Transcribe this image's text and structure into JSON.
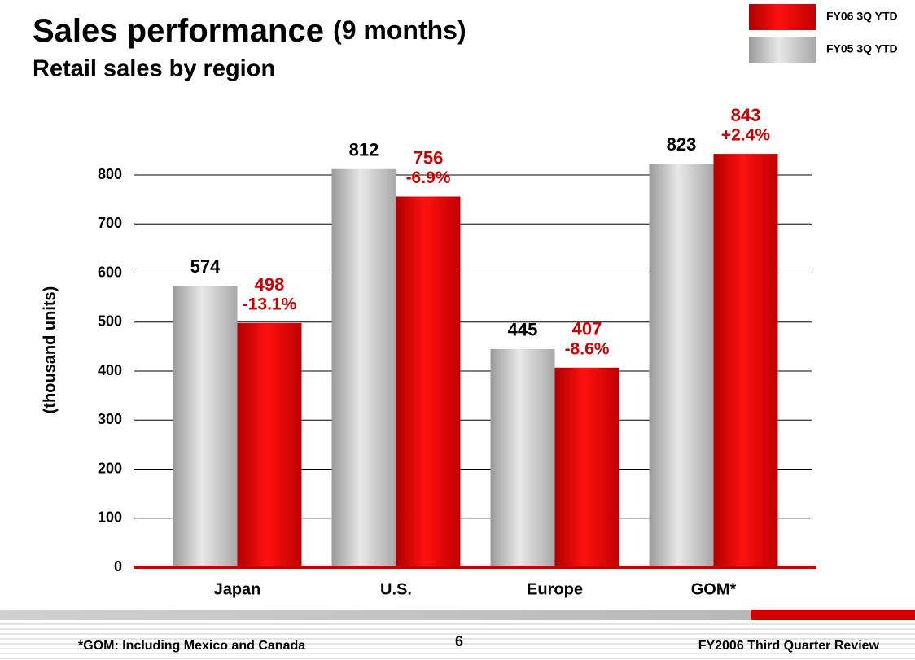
{
  "chart_data": {
    "type": "bar",
    "title": "Sales performance",
    "title_note": "(9 months)",
    "subtitle": "Retail sales by region",
    "y_label": "(thousand units)",
    "categories": [
      "Japan",
      "U.S.",
      "Europe",
      "GOM*"
    ],
    "series": [
      {
        "name": "FY05 3Q YTD",
        "color": "#c0c0c0",
        "values": [
          574,
          812,
          445,
          823
        ]
      },
      {
        "name": "FY06 3Q YTD",
        "color": "#ee0000",
        "values": [
          498,
          756,
          407,
          843
        ]
      }
    ],
    "change_labels": [
      "-13.1%",
      "-6.9%",
      "-8.6%",
      "+2.4%"
    ],
    "ylim": [
      0,
      900
    ],
    "yticks": [
      0,
      100,
      200,
      300,
      400,
      500,
      600,
      700,
      800
    ],
    "grid": true,
    "legend": "top-right"
  },
  "footer": {
    "note": "*GOM: Including Mexico and Canada",
    "page": "6",
    "report": "FY2006 Third Quarter Review"
  }
}
